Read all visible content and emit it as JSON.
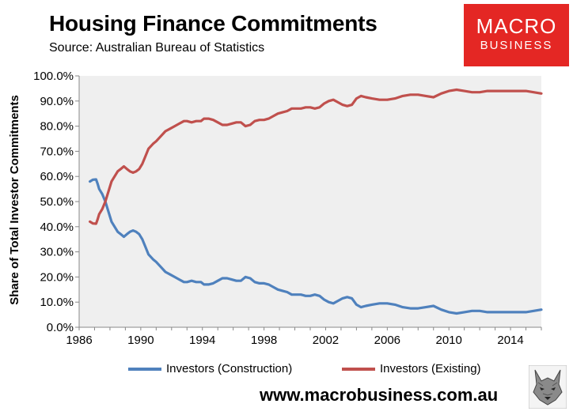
{
  "header": {
    "title": "Housing Finance Commitments",
    "subtitle": "Source: Australian Bureau of Statistics"
  },
  "logo": {
    "line1": "MACRO",
    "line2": "BUSINESS",
    "bg_color": "#e42724"
  },
  "footer": {
    "url": "www.macrobusiness.com.au",
    "wolf_icon": "wolf-icon"
  },
  "chart_data": {
    "type": "line",
    "title": "Housing Finance Commitments",
    "xlabel": "",
    "ylabel": "Share of Total Investor Commitments",
    "xlim": [
      1986,
      2016
    ],
    "ylim": [
      0,
      100
    ],
    "x_ticks": [
      1986,
      1990,
      1994,
      1998,
      2002,
      2006,
      2010,
      2014
    ],
    "x_tick_labels": [
      "1986",
      "1990",
      "1994",
      "1998",
      "2002",
      "2006",
      "2010",
      "2014"
    ],
    "y_ticks": [
      0,
      10,
      20,
      30,
      40,
      50,
      60,
      70,
      80,
      90,
      100
    ],
    "y_tick_labels": [
      "0.0%",
      "10.0%",
      "20.0%",
      "30.0%",
      "40.0%",
      "50.0%",
      "60.0%",
      "70.0%",
      "80.0%",
      "90.0%",
      "100.0%"
    ],
    "grid": false,
    "plot_bg": "#efefef",
    "legend_position": "bottom",
    "x": [
      1986.7,
      1986.9,
      1987.1,
      1987.2,
      1987.3,
      1987.5,
      1987.7,
      1987.9,
      1988.1,
      1988.3,
      1988.5,
      1988.7,
      1988.9,
      1989.1,
      1989.3,
      1989.5,
      1989.7,
      1989.9,
      1990.1,
      1990.3,
      1990.5,
      1990.8,
      1991.0,
      1991.3,
      1991.6,
      1991.9,
      1992.2,
      1992.5,
      1992.8,
      1993.0,
      1993.3,
      1993.6,
      1993.9,
      1994.1,
      1994.4,
      1994.7,
      1995.0,
      1995.3,
      1995.6,
      1995.9,
      1996.2,
      1996.5,
      1996.8,
      1997.1,
      1997.4,
      1997.7,
      1998.0,
      1998.3,
      1998.6,
      1998.9,
      1999.2,
      1999.5,
      1999.8,
      2000.1,
      2000.4,
      2000.7,
      2001.0,
      2001.3,
      2001.6,
      2001.9,
      2002.2,
      2002.5,
      2002.8,
      2003.1,
      2003.4,
      2003.7,
      2004.0,
      2004.3,
      2004.6,
      2005.0,
      2005.5,
      2006.0,
      2006.5,
      2007.0,
      2007.5,
      2008.0,
      2008.5,
      2009.0,
      2009.5,
      2010.0,
      2010.5,
      2011.0,
      2011.5,
      2012.0,
      2012.5,
      2013.0,
      2013.5,
      2014.0,
      2014.5,
      2015.0,
      2015.5,
      2016.0
    ],
    "series": [
      {
        "name": "Investors (Construction)",
        "color": "#4f81bd",
        "values": [
          58,
          58.7,
          58.8,
          57,
          55,
          53,
          50,
          46,
          42,
          40,
          38,
          37,
          36,
          37,
          38,
          38.5,
          38,
          37,
          35,
          32,
          29,
          27,
          26,
          24,
          22,
          21,
          20,
          19,
          18,
          18,
          18.5,
          18,
          18,
          17,
          17,
          17.5,
          18.5,
          19.5,
          19.5,
          19,
          18.5,
          18.5,
          20,
          19.5,
          18,
          17.5,
          17.5,
          17,
          16,
          15,
          14.5,
          14,
          13,
          13,
          13,
          12.5,
          12.5,
          13,
          12.5,
          11,
          10,
          9.5,
          10.5,
          11.5,
          12,
          11.5,
          9,
          8,
          8.5,
          9,
          9.5,
          9.5,
          9,
          8,
          7.5,
          7.5,
          8,
          8.5,
          7,
          6,
          5.5,
          6,
          6.5,
          6.5,
          6,
          6,
          6,
          6,
          6,
          6,
          6.5,
          7
        ]
      },
      {
        "name": "Investors (Existing)",
        "color": "#c0504d",
        "values": [
          42,
          41.3,
          41.2,
          43,
          45,
          47,
          50,
          54,
          58,
          60,
          62,
          63,
          64,
          63,
          62,
          61.5,
          62,
          63,
          65,
          68,
          71,
          73,
          74,
          76,
          78,
          79,
          80,
          81,
          82,
          82,
          81.5,
          82,
          82,
          83,
          83,
          82.5,
          81.5,
          80.5,
          80.5,
          81,
          81.5,
          81.5,
          80,
          80.5,
          82,
          82.5,
          82.5,
          83,
          84,
          85,
          85.5,
          86,
          87,
          87,
          87,
          87.5,
          87.5,
          87,
          87.5,
          89,
          90,
          90.5,
          89.5,
          88.5,
          88,
          88.5,
          91,
          92,
          91.5,
          91,
          90.5,
          90.5,
          91,
          92,
          92.5,
          92.5,
          92,
          91.5,
          93,
          94,
          94.5,
          94,
          93.5,
          93.5,
          94,
          94,
          94,
          94,
          94,
          94,
          93.5,
          93
        ]
      }
    ]
  }
}
